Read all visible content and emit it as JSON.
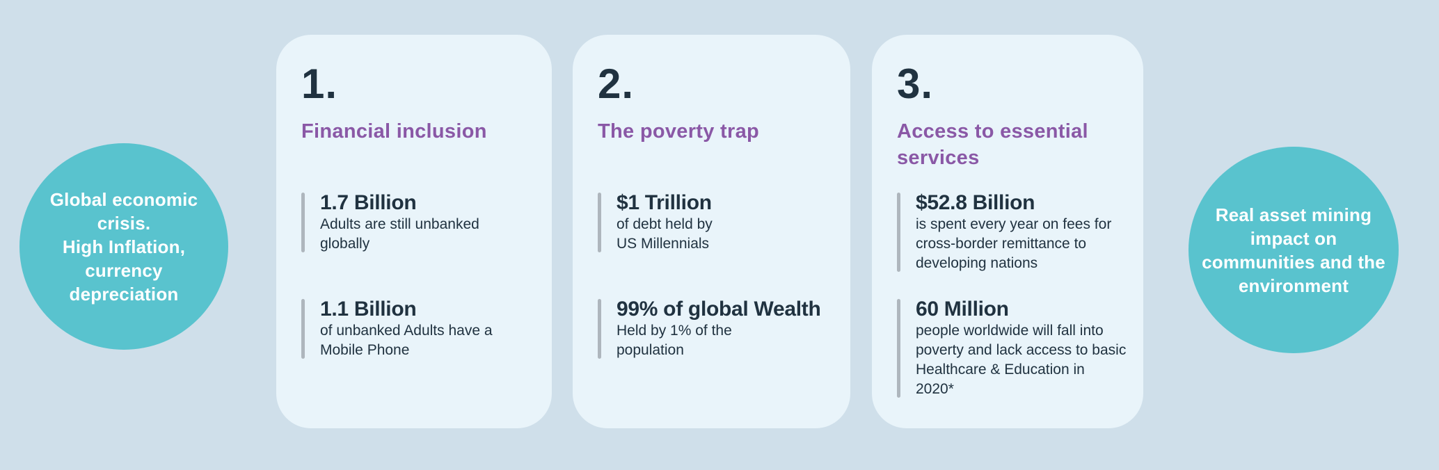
{
  "colors": {
    "page_bg": "#cfdfea",
    "card_bg": "#e9f4fa",
    "circle_bg": "#59c3ce",
    "heading": "#8a58a6",
    "dark": "#203240",
    "bar": "#aeb6bd",
    "circle_text": "#ffffff"
  },
  "left_circle": {
    "text": "Global economic\ncrisis.\nHigh Inflation,\ncurrency\ndepreciation"
  },
  "right_circle": {
    "text": "Real asset  mining\nimpact on\ncommunities and the\nenvironment"
  },
  "cards": [
    {
      "number": "1.",
      "title": "Financial inclusion",
      "stats": [
        {
          "value": "1.7 Billion",
          "desc": "Adults are still unbanked\nglobally"
        },
        {
          "value": "1.1 Billion",
          "desc": "of unbanked Adults have a\nMobile Phone"
        }
      ]
    },
    {
      "number": "2.",
      "title": "The poverty trap",
      "stats": [
        {
          "value": "$1 Trillion",
          "desc": "of debt held by\nUS Millennials"
        },
        {
          "value": "99% of global Wealth",
          "desc": "Held by 1% of the\npopulation"
        }
      ]
    },
    {
      "number": "3.",
      "title": "Access to essential\nservices",
      "stats": [
        {
          "value": "$52.8 Billion",
          "desc": "is spent every year on fees for\ncross-border remittance to\ndeveloping nations"
        },
        {
          "value": "60 Million",
          "desc": "people worldwide will fall into\npoverty and lack access to basic\nHealthcare & Education in 2020*"
        }
      ]
    }
  ]
}
